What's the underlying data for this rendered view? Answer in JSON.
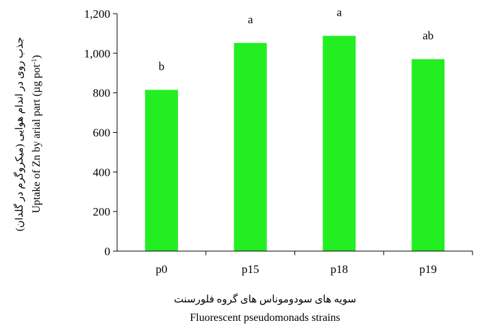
{
  "chart_data": {
    "type": "bar",
    "categories": [
      "p0",
      "p15",
      "p18",
      "p19"
    ],
    "values": [
      815,
      1052,
      1088,
      970
    ],
    "significance_letters": [
      "b",
      "a",
      "a",
      "ab"
    ],
    "ylim": [
      0,
      1200
    ],
    "yticks": [
      0,
      200,
      400,
      600,
      800,
      1000,
      1200
    ],
    "ytick_labels": [
      "0",
      "200",
      "400",
      "600",
      "800",
      "1,000",
      "1,200"
    ],
    "xlabel_fa": "سویه های سودوموناس های گروه فلورسنت",
    "xlabel_en": "Fluorescent pseudomonads strains",
    "ylabel_fa": "جذب روی در اندام هوایی (میکروگرم در گلدان)",
    "ylabel_en": "Uptake of Zn by arial part (µg  pot",
    "ylabel_en_sup": "-1",
    "ylabel_en_close": ")",
    "bar_color": "#22ee22",
    "grid": false,
    "legend": "none"
  }
}
